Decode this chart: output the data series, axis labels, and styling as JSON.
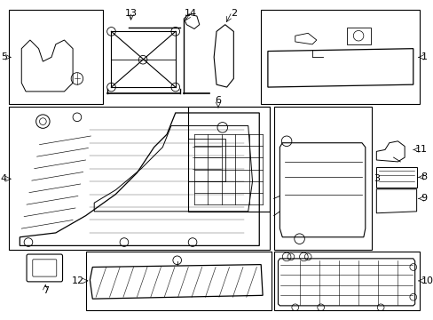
{
  "background_color": "#ffffff",
  "line_color": "#000000",
  "text_color": "#000000",
  "font_size": 8
}
